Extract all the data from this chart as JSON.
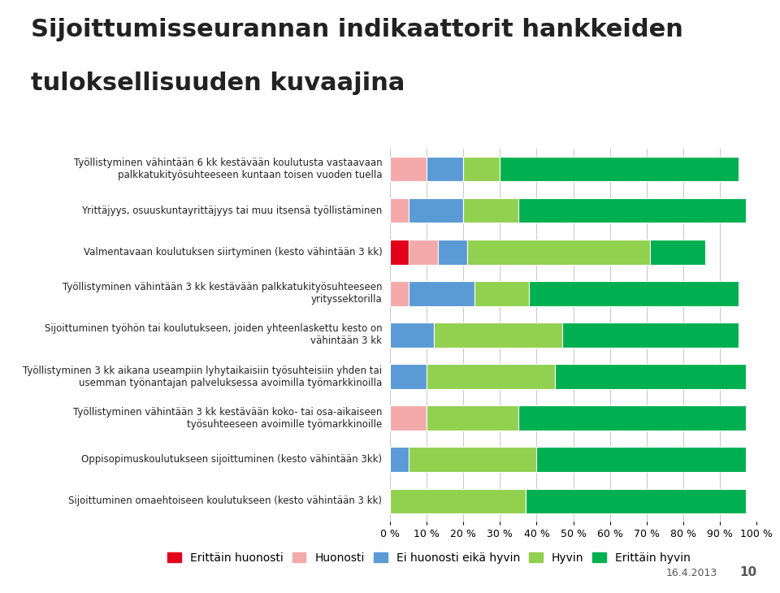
{
  "title_line1": "Sijoittumisseurannan indikaattorit hankkeiden",
  "title_line2": "tuloksellisuuden kuvaajina",
  "categories": [
    "Työllistyminen vähintään 6 kk kestävään koulutusta vastaavaan\npalkkatukityösuhteeseen kuntaan toisen vuoden tuella",
    "Yrittäjyys, osuuskuntayrittäjyys tai muu itsensä työllistäminen",
    "Valmentavaan koulutuksen siirtyminen (kesto vähintään 3 kk)",
    "Työllistyminen vähintään 3 kk kestävään palkkatukityösuhteeseen\nyrityssektorilla",
    "Sijoittuminen työhön tai koulutukseen, joiden yhteenlaskettu kesto on\nvähintään 3 kk",
    "Työllistyminen 3 kk aikana useampiin lyhytaikaisiin työsuhteisiin yhden tai\nusemman työnantajan palveluksessa avoimilla työmarkkinoilla",
    "Työllistyminen vähintään 3 kk kestävään koko- tai osa-aikaiseen\ntyösuhteeseen avoimille työmarkkinoille",
    "Oppisopimuskoulutukseen sijoittuminen (kesto vähintään 3kk)",
    "Sijoittuminen omaehtoiseen koulutukseen (kesto vähintään 3 kk)"
  ],
  "series": {
    "Erittäin huonosti": [
      0,
      0,
      5,
      0,
      0,
      0,
      0,
      0,
      0
    ],
    "Huonosti": [
      10,
      5,
      8,
      5,
      0,
      0,
      10,
      0,
      0
    ],
    "Ei huonosti eikä hyvin": [
      10,
      15,
      8,
      18,
      12,
      10,
      0,
      5,
      0
    ],
    "Hyvin": [
      10,
      15,
      50,
      15,
      35,
      35,
      25,
      35,
      37
    ],
    "Erittäin hyvin": [
      65,
      62,
      15,
      57,
      48,
      52,
      62,
      57,
      60
    ]
  },
  "colors": {
    "Erittäin huonosti": "#e5001a",
    "Huonosti": "#f4aaaa",
    "Ei huonosti eikä hyvin": "#5b9bd5",
    "Hyvin": "#92d050",
    "Erittäin hyvin": "#00b050"
  },
  "legend_order": [
    "Erittäin huonosti",
    "Huonosti",
    "Ei huonosti eikä hyvin",
    "Hyvin",
    "Erittäin hyvin"
  ],
  "xtick_values": [
    0,
    10,
    20,
    30,
    40,
    50,
    60,
    70,
    80,
    90,
    100
  ],
  "xtick_labels": [
    "0 %",
    "10 %",
    "20 %",
    "30 %",
    "40 %",
    "50 %",
    "60 %",
    "70 %",
    "80 %",
    "90 %",
    "100 %"
  ],
  "background_color": "#ffffff",
  "teal_bar_color": "#7ecfd0",
  "title_fontsize": 22,
  "label_fontsize": 8.5,
  "tick_fontsize": 9,
  "legend_fontsize": 10
}
